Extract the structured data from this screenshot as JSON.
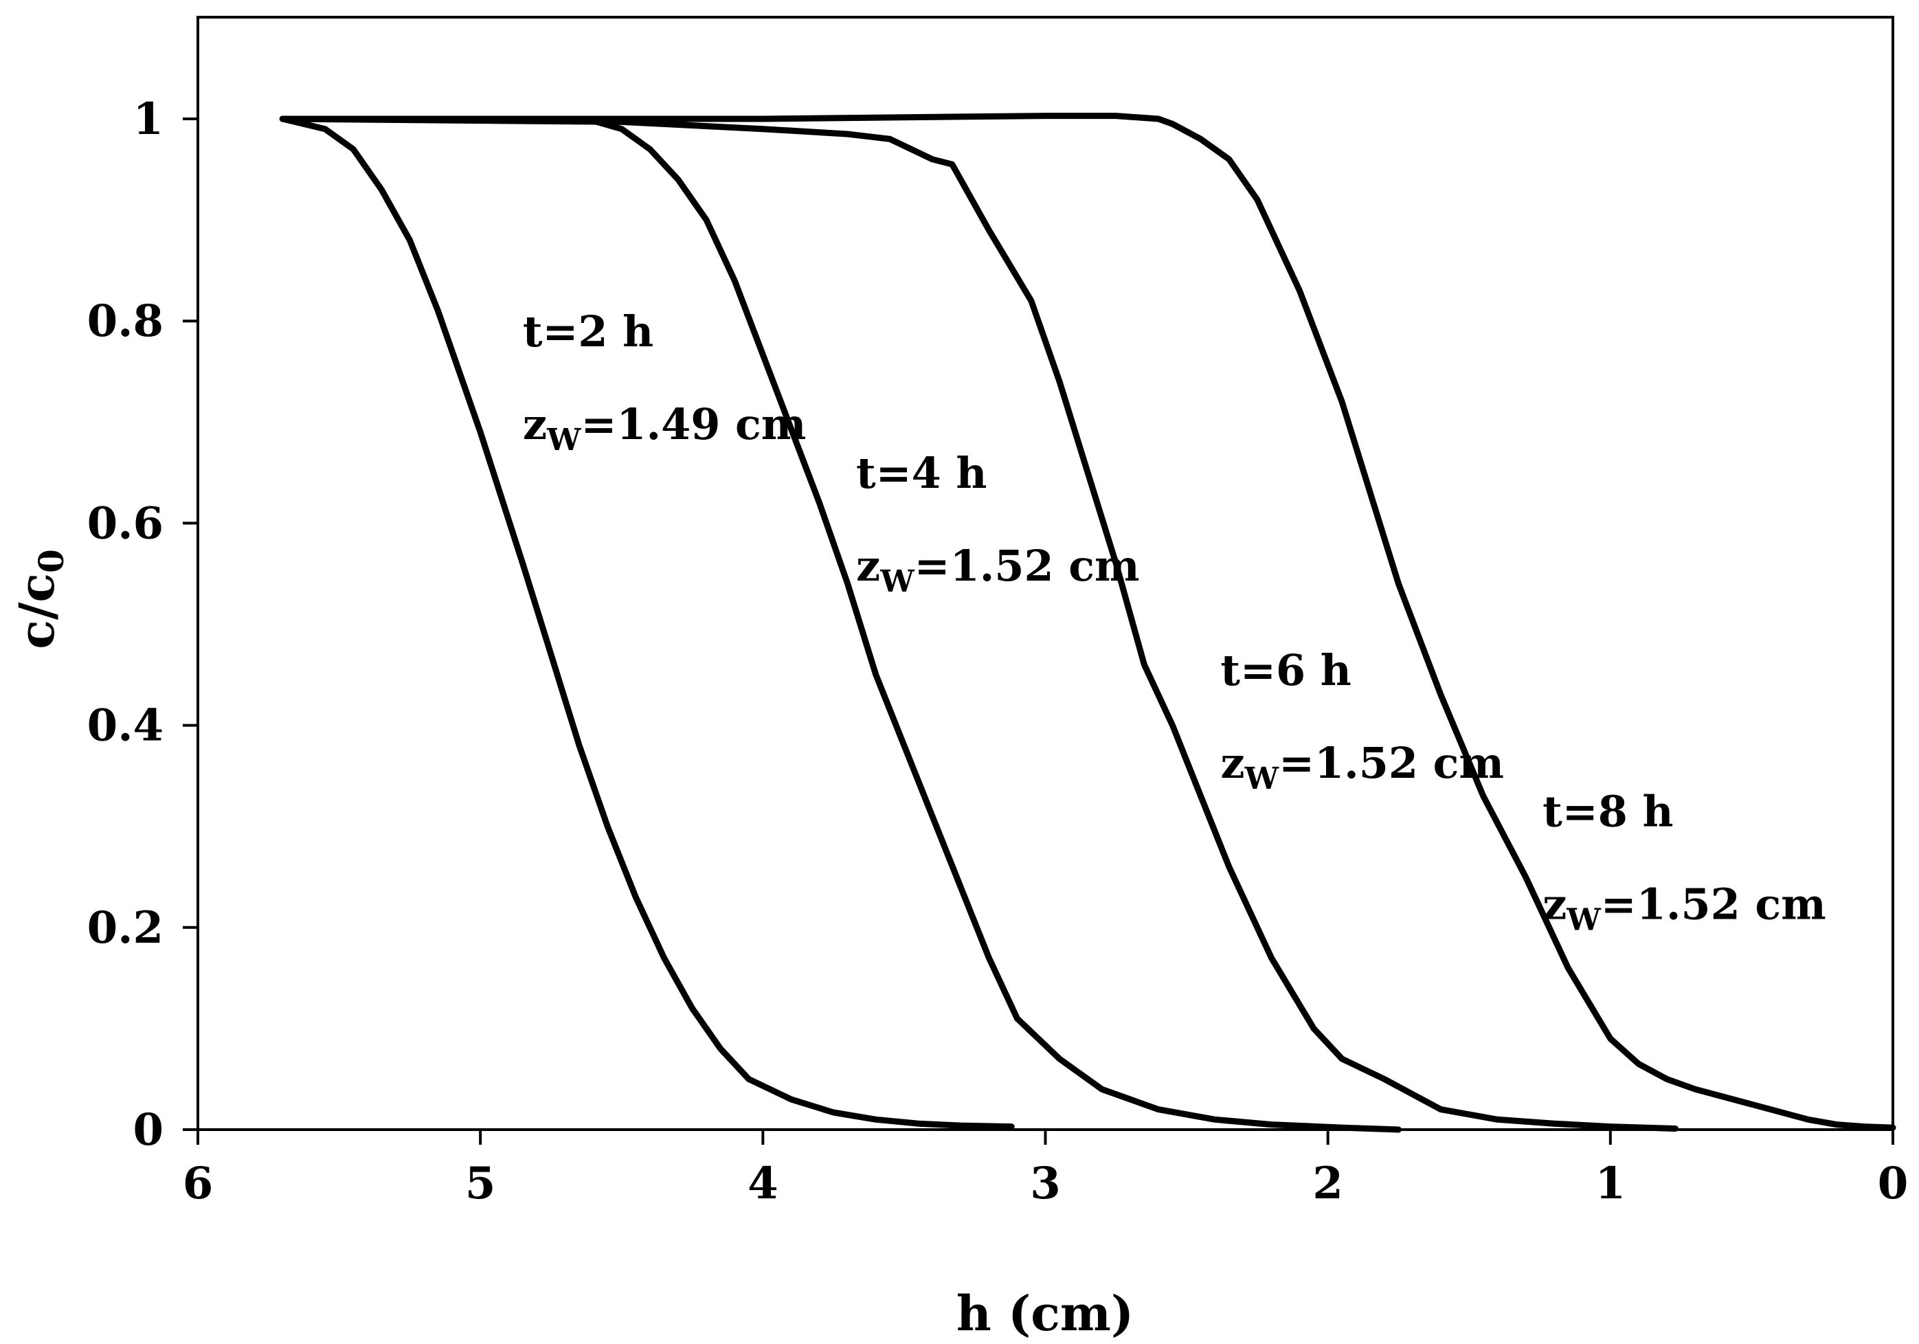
{
  "chart_data": {
    "type": "line",
    "title": "",
    "xlabel": "h (cm)",
    "ylabel_main": "c/c",
    "ylabel_sub": "0",
    "xlim": [
      6,
      0
    ],
    "ylim": [
      0,
      1.1
    ],
    "x_reversed": true,
    "x_ticks": [
      6,
      5,
      4,
      3,
      2,
      1,
      0
    ],
    "x_tick_labels": [
      "6",
      "5",
      "4",
      "3",
      "2",
      "1",
      "0"
    ],
    "y_ticks": [
      0,
      0.2,
      0.4,
      0.6,
      0.8,
      1
    ],
    "y_tick_labels": [
      "0",
      "0.2",
      "0.4",
      "0.6",
      "0.8",
      "1"
    ],
    "grid": false,
    "legend": "none",
    "series": [
      {
        "x": [
          5.7,
          5.55,
          5.45,
          5.35,
          5.25,
          5.15,
          5.0,
          4.85,
          4.75,
          4.65,
          4.55,
          4.45,
          4.35,
          4.25,
          4.15,
          4.05,
          3.9,
          3.75,
          3.6,
          3.45,
          3.3,
          3.12
        ],
        "y": [
          1.0,
          0.99,
          0.97,
          0.93,
          0.88,
          0.81,
          0.69,
          0.56,
          0.47,
          0.38,
          0.3,
          0.23,
          0.17,
          0.12,
          0.08,
          0.05,
          0.03,
          0.017,
          0.01,
          0.006,
          0.004,
          0.003
        ],
        "annotation": {
          "t": "t=2 h",
          "z_main": "z",
          "z_sub": "W",
          "z_val": "=1.49 cm",
          "x": 4.85,
          "y": 0.775
        }
      },
      {
        "x": [
          5.7,
          5.0,
          4.6,
          4.5,
          4.4,
          4.3,
          4.2,
          4.1,
          3.95,
          3.8,
          3.7,
          3.6,
          3.5,
          3.4,
          3.3,
          3.2,
          3.1,
          2.95,
          2.8,
          2.6,
          2.4,
          2.2,
          1.95,
          1.75
        ],
        "y": [
          1.0,
          1.0,
          0.998,
          0.99,
          0.97,
          0.94,
          0.9,
          0.84,
          0.73,
          0.62,
          0.54,
          0.45,
          0.38,
          0.31,
          0.24,
          0.17,
          0.11,
          0.07,
          0.04,
          0.02,
          0.01,
          0.005,
          0.002,
          0.0
        ],
        "annotation": {
          "t": "t=4 h",
          "z_main": "z",
          "z_sub": "W",
          "z_val": "=1.52 cm",
          "x": 3.67,
          "y": 0.635
        }
      },
      {
        "x": [
          5.7,
          4.5,
          4.0,
          3.7,
          3.55,
          3.4,
          3.33,
          3.3,
          3.2,
          3.05,
          2.95,
          2.85,
          2.75,
          2.65,
          2.55,
          2.45,
          2.35,
          2.2,
          2.05,
          1.95,
          1.8,
          1.6,
          1.4,
          1.2,
          1.0,
          0.77
        ],
        "y": [
          1.0,
          0.997,
          0.99,
          0.985,
          0.98,
          0.96,
          0.955,
          0.94,
          0.89,
          0.82,
          0.74,
          0.65,
          0.56,
          0.46,
          0.4,
          0.33,
          0.26,
          0.17,
          0.1,
          0.07,
          0.05,
          0.02,
          0.01,
          0.006,
          0.003,
          0.001
        ],
        "annotation": {
          "t": "t=6 h",
          "z_main": "z",
          "z_sub": "W",
          "z_val": "=1.52 cm",
          "x": 2.38,
          "y": 0.44
        }
      },
      {
        "x": [
          5.7,
          4.0,
          3.0,
          2.75,
          2.6,
          2.55,
          2.45,
          2.35,
          2.25,
          2.1,
          1.95,
          1.85,
          1.75,
          1.6,
          1.45,
          1.3,
          1.15,
          1.0,
          0.9,
          0.8,
          0.7,
          0.5,
          0.3,
          0.2,
          0.1,
          0.0
        ],
        "y": [
          1.0,
          1.0,
          1.003,
          1.003,
          1.0,
          0.995,
          0.98,
          0.96,
          0.92,
          0.83,
          0.72,
          0.63,
          0.54,
          0.43,
          0.33,
          0.25,
          0.16,
          0.09,
          0.065,
          0.05,
          0.04,
          0.025,
          0.01,
          0.005,
          0.003,
          0.002
        ],
        "annotation": {
          "t": "t=8 h",
          "z_main": "z",
          "z_sub": "W",
          "z_val": "=1.52 cm",
          "x": 1.24,
          "y": 0.3
        }
      }
    ]
  }
}
